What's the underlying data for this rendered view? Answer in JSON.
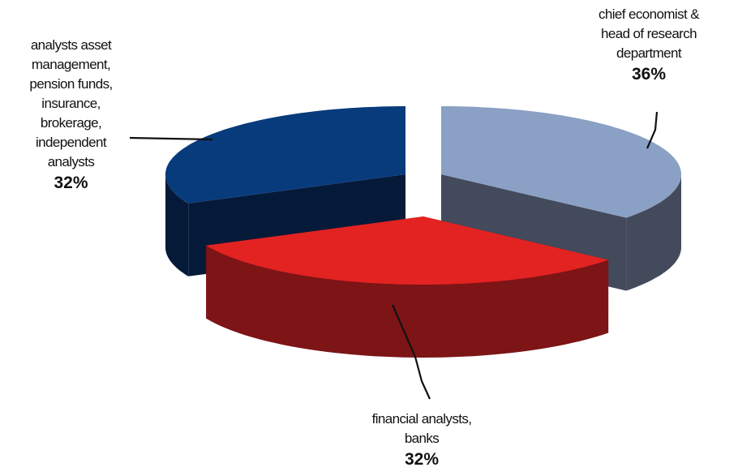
{
  "chart_data": {
    "type": "pie",
    "subtype": "3d-exploded",
    "slices": [
      {
        "label_lines": [
          "chief economist &",
          "head of research",
          "department"
        ],
        "percent_label": "36%",
        "value": 36,
        "color_top": "#8aa0c4",
        "color_side": "#434a5b"
      },
      {
        "label_lines": [
          "financial analysts,",
          "banks"
        ],
        "percent_label": "32%",
        "value": 32,
        "color_top": "#e32222",
        "color_side": "#7d1416"
      },
      {
        "label_lines": [
          "analysts asset",
          "management,",
          "pension funds,",
          "insurance,",
          "brokerage,",
          "independent",
          "analysts"
        ],
        "percent_label": "32%",
        "value": 32,
        "color_top": "#083b7c",
        "color_side": "#051a38"
      }
    ],
    "legend": "none",
    "title": ""
  }
}
